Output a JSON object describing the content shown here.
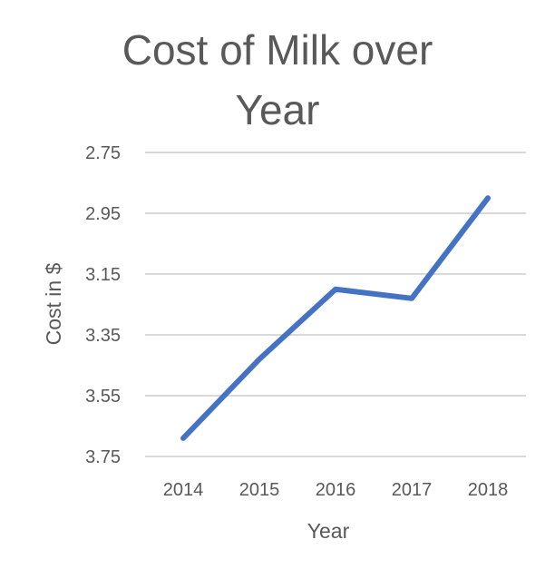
{
  "chart_data": {
    "type": "line",
    "title_lines": [
      "Cost of Milk over",
      "Year"
    ],
    "xlabel": "Year",
    "ylabel": "Cost in $",
    "categories": [
      "2014",
      "2015",
      "2016",
      "2017",
      "2018"
    ],
    "series": [
      {
        "values": [
          3.69,
          3.43,
          3.2,
          3.23,
          2.9
        ]
      }
    ],
    "y_ticks": [
      "2.75",
      "2.95",
      "3.15",
      "3.35",
      "3.55",
      "3.75"
    ],
    "ylim": [
      2.75,
      3.75
    ],
    "y_axis_reversed": true,
    "grid": true,
    "legend": "none",
    "colors": {
      "line": "#4472c4",
      "grid": "#d9d9d9",
      "text": "#595959"
    }
  }
}
